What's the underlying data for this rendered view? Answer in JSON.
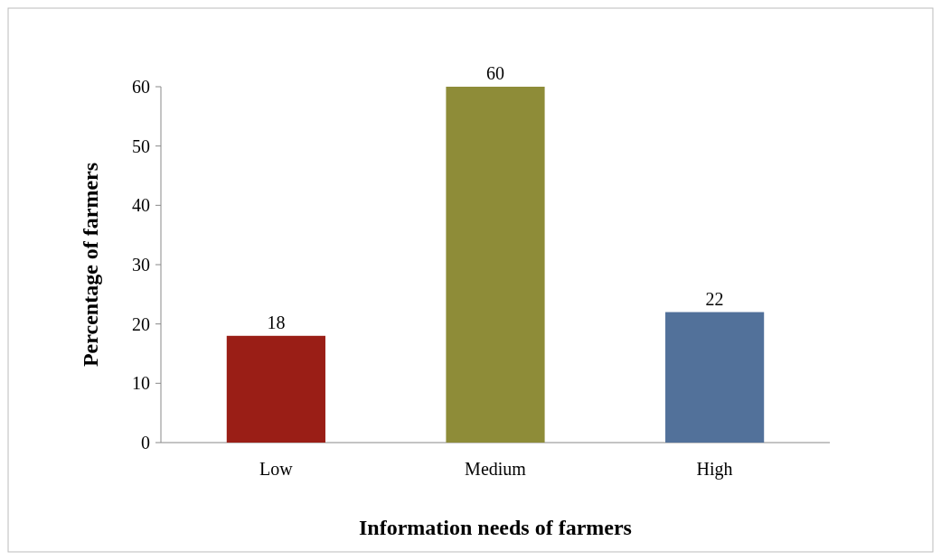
{
  "chart_data": {
    "type": "bar",
    "xlabel": "Information needs of farmers",
    "ylabel": "Percentage of farmers",
    "categories": [
      "Low",
      "Medium",
      "High"
    ],
    "values": [
      18,
      60,
      22
    ],
    "colors": [
      "#9a1e16",
      "#8e8c38",
      "#52719a"
    ],
    "ylim": [
      0,
      60
    ],
    "yticks": [
      0,
      10,
      20,
      30,
      40,
      50,
      60
    ],
    "data_labels": true,
    "grid": false
  }
}
